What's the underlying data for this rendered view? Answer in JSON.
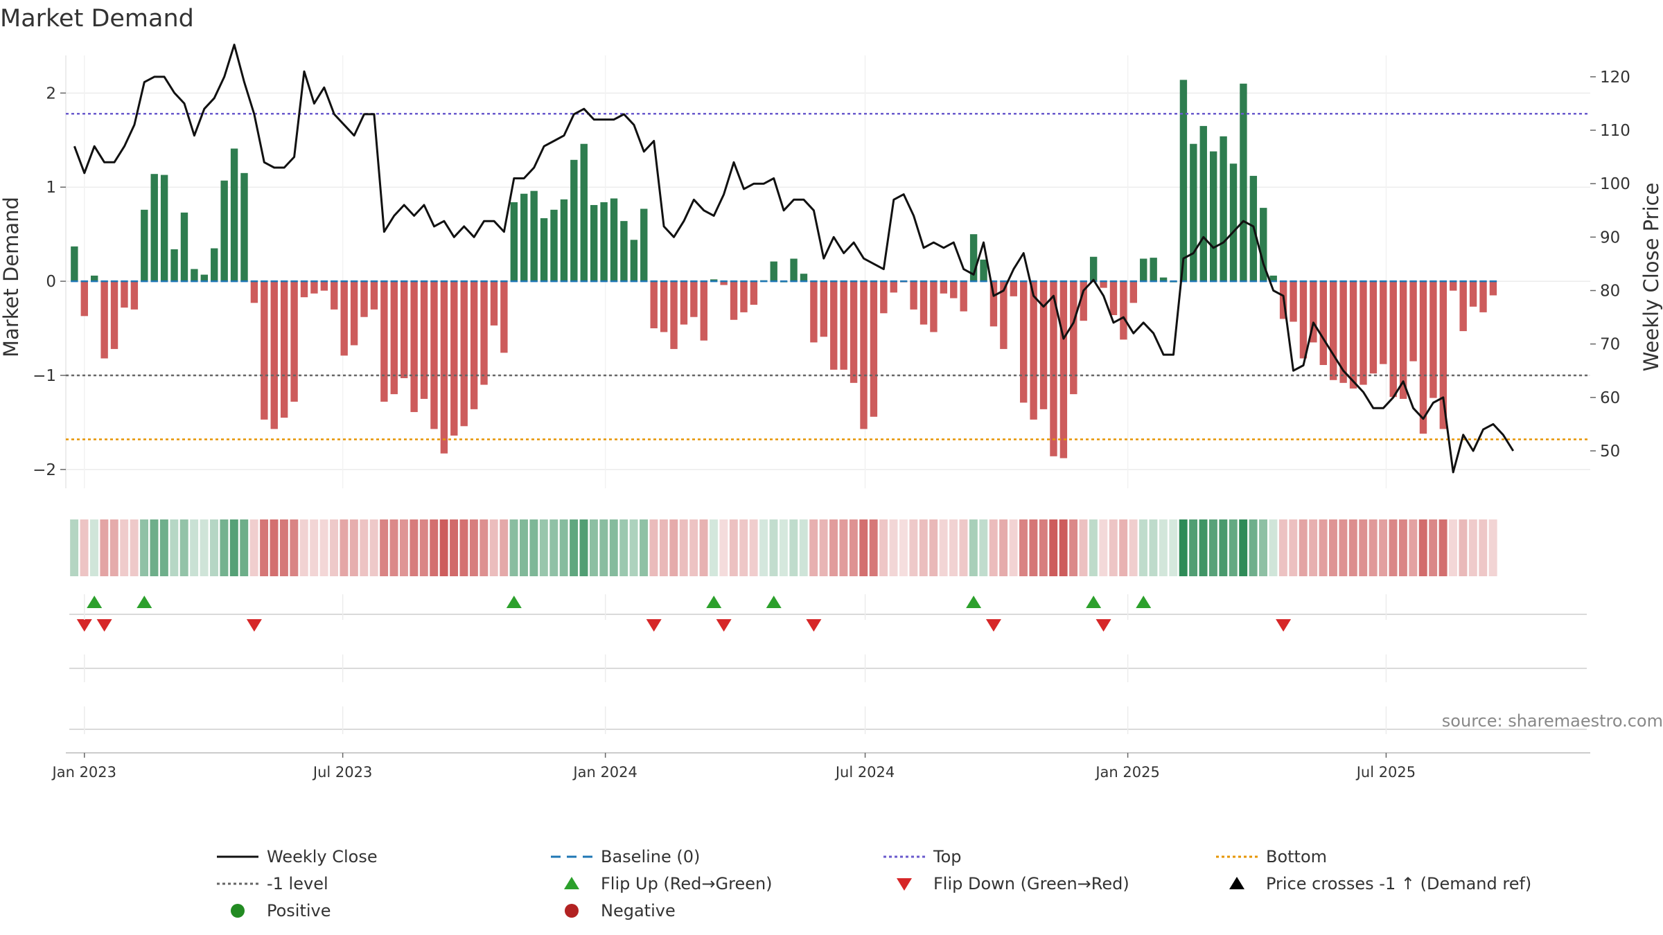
{
  "chart_data": {
    "type": "bar",
    "title": "Market Demand",
    "ylabel_left": "Market Demand",
    "ylabel_right": "Weekly Close Price",
    "ylim_left": [
      -2.2,
      2.4
    ],
    "yticks_left": [
      2,
      1,
      0,
      -1,
      -2
    ],
    "ytick_labels_left": [
      "2",
      "1",
      "0",
      "−1",
      "−2"
    ],
    "ylim_right": [
      43,
      124
    ],
    "yticks_right": [
      120,
      110,
      100,
      90,
      80,
      70,
      60,
      50
    ],
    "ytick_labels_right": [
      "120",
      "110",
      "100",
      "90",
      "80",
      "70",
      "60",
      "50"
    ],
    "x_start": "2022-12-25",
    "week_days": 7,
    "x_range_days": [
      -6,
      1062
    ],
    "xticks": [
      {
        "day": 7,
        "label": "Jan 2023"
      },
      {
        "day": 188,
        "label": "Jul 2023"
      },
      {
        "day": 372,
        "label": "Jan 2024"
      },
      {
        "day": 554,
        "label": "Jul 2024"
      },
      {
        "day": 738,
        "label": "Jan 2025"
      },
      {
        "day": 919,
        "label": "Jul 2025"
      }
    ],
    "levels": {
      "top": 1.78,
      "neg1": -1.0,
      "bottom": -1.68,
      "baseline": 0
    },
    "series": [
      {
        "name": "Market Demand",
        "values": [
          0.37,
          -0.37,
          0.06,
          -0.82,
          -0.72,
          -0.28,
          -0.3,
          0.76,
          1.14,
          1.13,
          0.34,
          0.73,
          0.13,
          0.07,
          0.35,
          1.07,
          1.41,
          1.15,
          -0.23,
          -1.47,
          -1.57,
          -1.45,
          -1.28,
          -0.17,
          -0.13,
          -0.1,
          -0.3,
          -0.79,
          -0.68,
          -0.38,
          -0.3,
          -1.28,
          -1.2,
          -1.03,
          -1.39,
          -1.25,
          -1.57,
          -1.83,
          -1.64,
          -1.54,
          -1.36,
          -1.1,
          -0.47,
          -0.76,
          0.84,
          0.93,
          0.96,
          0.67,
          0.76,
          0.87,
          1.29,
          1.46,
          0.81,
          0.84,
          0.88,
          0.64,
          0.44,
          0.77,
          -0.5,
          -0.54,
          -0.72,
          -0.46,
          -0.38,
          -0.63,
          0.02,
          -0.04,
          -0.41,
          -0.33,
          -0.25,
          0.01,
          0.21,
          0.0,
          0.24,
          0.08,
          -0.65,
          -0.59,
          -0.94,
          -0.94,
          -1.08,
          -1.57,
          -1.44,
          -0.34,
          -0.12,
          -0.01,
          -0.3,
          -0.46,
          -0.54,
          -0.13,
          -0.18,
          -0.32,
          0.5,
          0.23,
          -0.48,
          -0.72,
          -0.16,
          -1.29,
          -1.47,
          -1.36,
          -1.86,
          -1.88,
          -1.2,
          -0.42,
          0.26,
          -0.07,
          -0.36,
          -0.62,
          -0.23,
          0.24,
          0.25,
          0.04,
          0.0,
          2.14,
          1.46,
          1.65,
          1.38,
          1.54,
          1.25,
          2.1,
          1.12,
          0.78,
          0.06,
          -0.4,
          -0.43,
          -0.82,
          -0.65,
          -0.89,
          -1.05,
          -1.08,
          -1.14,
          -1.1,
          -0.98,
          -0.88,
          -1.23,
          -1.25,
          -0.85,
          -1.62,
          -1.24,
          -1.57,
          -0.1,
          -0.53,
          -0.27,
          -0.33,
          -0.15
        ]
      },
      {
        "name": "Weekly Close",
        "values": [
          107,
          102,
          107,
          104,
          104,
          107,
          111,
          119,
          120,
          120,
          117,
          115,
          109,
          114,
          116,
          120,
          126,
          119,
          113,
          104,
          103,
          103,
          105,
          121,
          115,
          118,
          113,
          111,
          109,
          113,
          113,
          91,
          94,
          96,
          94,
          96,
          92,
          93,
          90,
          92,
          90,
          93,
          93,
          91,
          101,
          101,
          103,
          107,
          108,
          109,
          113,
          114,
          112,
          112,
          112,
          113,
          111,
          106,
          108,
          92,
          90,
          93,
          97,
          95,
          94,
          98,
          104,
          99,
          100,
          100,
          101,
          95,
          97,
          97,
          95,
          86,
          90,
          87,
          89,
          86,
          85,
          84,
          97,
          98,
          94,
          88,
          89,
          88,
          89,
          84,
          83,
          89,
          79,
          80,
          84,
          87,
          79,
          77,
          79,
          71,
          74,
          80,
          82,
          79,
          74,
          75,
          72,
          74,
          72,
          68,
          68,
          86,
          87,
          90,
          88,
          89,
          91,
          93,
          92,
          85,
          80,
          79,
          65,
          66,
          74,
          71,
          68,
          65,
          63,
          61,
          58,
          58,
          60,
          63,
          58,
          56,
          59,
          60,
          46,
          53,
          50,
          54,
          55,
          53,
          50
        ]
      }
    ],
    "flip_up_weeks": [
      2,
      7,
      44,
      64,
      70,
      90,
      102,
      107
    ],
    "flip_down_weeks": [
      1,
      3,
      18,
      58,
      65,
      74,
      92,
      103,
      121
    ],
    "ribbon_colors": {
      "positive": "#2e8b57",
      "negative": "#cd5c5c"
    },
    "colors": {
      "pos_bar": "#2e7d4f",
      "neg_bar": "#cd5c5c",
      "close_line": "#111111",
      "baseline": "#1f77b4",
      "top": "#6a5acd",
      "neg1": "#666666",
      "bottom": "#e69500",
      "flip_up": "#2ca02c",
      "flip_down": "#d62728",
      "positive": "#228b22",
      "negative": "#b22222",
      "price_cross": "#000000"
    },
    "source_text": "source: sharemaestro.com",
    "legend": [
      {
        "label": "Weekly Close",
        "kind": "solid",
        "color": "#111111"
      },
      {
        "label": "Baseline (0)",
        "kind": "dash",
        "color": "#1f77b4"
      },
      {
        "label": "Top",
        "kind": "dot",
        "color": "#6a5acd"
      },
      {
        "label": "Bottom",
        "kind": "dot",
        "color": "#e69500"
      },
      {
        "label": "-1 level",
        "kind": "dot",
        "color": "#666666"
      },
      {
        "label": "Flip Up (Red→Green)",
        "kind": "triup",
        "color": "#2ca02c"
      },
      {
        "label": "Flip Down (Green→Red)",
        "kind": "tridown",
        "color": "#d62728"
      },
      {
        "label": "Price crosses -1 ↑ (Demand ref)",
        "kind": "triup",
        "color": "#000000"
      },
      {
        "label": "Positive",
        "kind": "circle",
        "color": "#228b22"
      },
      {
        "label": "Negative",
        "kind": "circle",
        "color": "#b22222"
      }
    ]
  }
}
